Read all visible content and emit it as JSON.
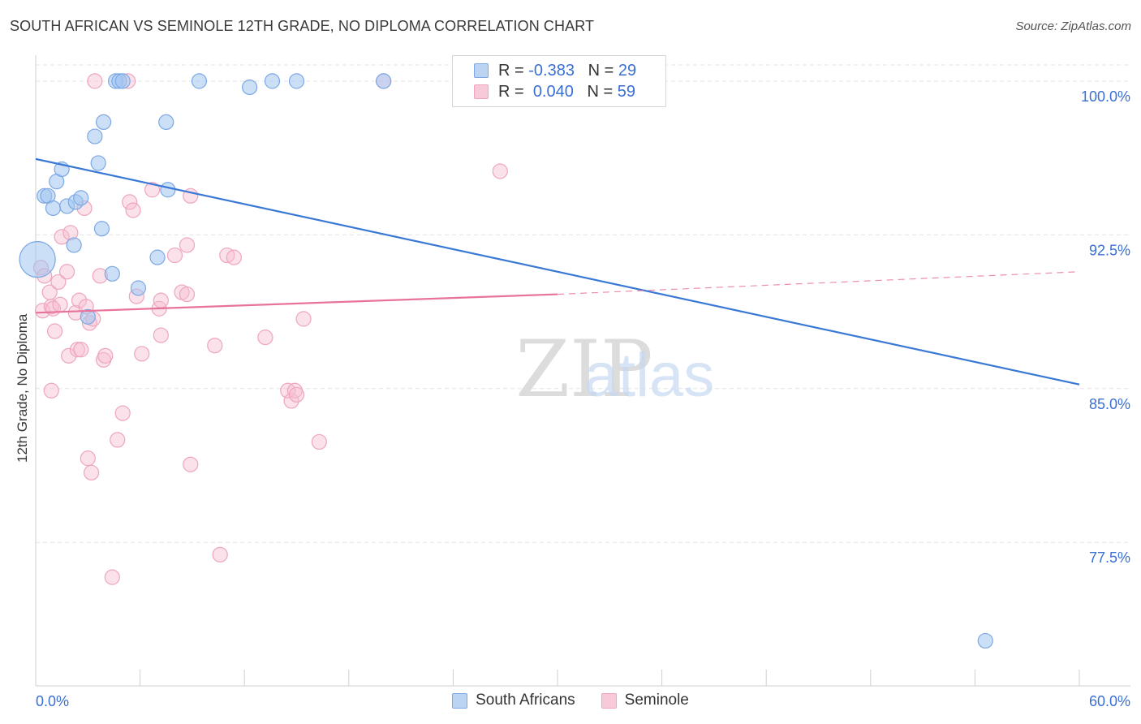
{
  "title": "SOUTH AFRICAN VS SEMINOLE 12TH GRADE, NO DIPLOMA CORRELATION CHART",
  "source": "Source: ZipAtlas.com",
  "watermark": {
    "zip": "ZIP",
    "atlas": "atlas"
  },
  "legend_top": [
    {
      "r_label": "R =",
      "r_value": "-0.383",
      "n_label": "N =",
      "n_value": "29"
    },
    {
      "r_label": "R =",
      "r_value": "0.040",
      "n_label": "N =",
      "n_value": "59"
    }
  ],
  "chart_data": {
    "type": "scatter",
    "title": "SOUTH AFRICAN VS SEMINOLE 12TH GRADE, NO DIPLOMA CORRELATION CHART",
    "xlabel": "",
    "ylabel": "12th Grade, No Diploma",
    "xlim": [
      0,
      60
    ],
    "ylim": [
      70.5,
      101.5
    ],
    "x_tick_labels": [
      "0.0%",
      "60.0%"
    ],
    "y_ticks": [
      100.0,
      92.5,
      85.0,
      77.5
    ],
    "y_tick_labels": [
      "100.0%",
      "92.5%",
      "85.0%",
      "77.5%"
    ],
    "grid": true,
    "legend": "bottom-center",
    "colors": {
      "south_africans": "#8ab4ea",
      "seminole": "#f2a7bf",
      "sa_line": "#3a78d6",
      "sem_line": "#e8739a",
      "tick_text": "#3a6fd4"
    },
    "series": [
      {
        "name": "South Africans",
        "R": -0.383,
        "N": 29,
        "trend": {
          "x0": 0,
          "y0": 96.2,
          "x1": 60,
          "y1": 85.2
        },
        "points": [
          [
            0.1,
            91.3,
            22
          ],
          [
            0.5,
            94.4,
            9
          ],
          [
            0.7,
            94.4,
            9
          ],
          [
            1.0,
            93.8,
            9
          ],
          [
            1.2,
            95.1,
            9
          ],
          [
            1.5,
            95.7,
            9
          ],
          [
            1.8,
            93.9,
            9
          ],
          [
            2.2,
            92.0,
            9
          ],
          [
            2.3,
            94.1,
            9
          ],
          [
            2.6,
            94.3,
            9
          ],
          [
            3.0,
            88.5,
            9
          ],
          [
            3.4,
            97.3,
            9
          ],
          [
            3.6,
            96.0,
            9
          ],
          [
            3.8,
            92.8,
            9
          ],
          [
            3.9,
            98.0,
            9
          ],
          [
            4.4,
            90.6,
            9
          ],
          [
            4.6,
            100.0,
            9
          ],
          [
            4.8,
            100.0,
            9
          ],
          [
            5.0,
            100.0,
            9
          ],
          [
            5.9,
            89.9,
            9
          ],
          [
            7.0,
            91.4,
            9
          ],
          [
            7.5,
            98.0,
            9
          ],
          [
            7.6,
            94.7,
            9
          ],
          [
            9.4,
            100.0,
            9
          ],
          [
            12.3,
            99.7,
            9
          ],
          [
            13.6,
            100.0,
            9
          ],
          [
            15.0,
            100.0,
            9
          ],
          [
            20.0,
            100.0,
            9
          ],
          [
            54.6,
            72.7,
            9
          ]
        ]
      },
      {
        "name": "Seminole",
        "R": 0.04,
        "N": 59,
        "trend": {
          "x0": 0,
          "y0": 88.7,
          "x1": 30,
          "y1": 89.6
        },
        "trend_dashed": {
          "x0": 30,
          "y0": 89.6,
          "x1": 60,
          "y1": 90.7
        },
        "points": [
          [
            0.3,
            90.9,
            9
          ],
          [
            0.4,
            88.8,
            9
          ],
          [
            0.5,
            90.5,
            9
          ],
          [
            0.8,
            89.7,
            9
          ],
          [
            0.9,
            89.0,
            9
          ],
          [
            0.9,
            84.9,
            9
          ],
          [
            1.0,
            88.9,
            9
          ],
          [
            1.1,
            87.8,
            9
          ],
          [
            1.3,
            90.2,
            9
          ],
          [
            1.4,
            89.1,
            9
          ],
          [
            1.5,
            92.4,
            9
          ],
          [
            1.8,
            90.7,
            9
          ],
          [
            1.9,
            86.6,
            9
          ],
          [
            2.0,
            92.6,
            9
          ],
          [
            2.3,
            88.7,
            9
          ],
          [
            2.4,
            86.9,
            9
          ],
          [
            2.5,
            89.3,
            9
          ],
          [
            2.6,
            86.9,
            9
          ],
          [
            2.8,
            93.8,
            9
          ],
          [
            2.9,
            89.0,
            9
          ],
          [
            3.0,
            81.6,
            9
          ],
          [
            3.1,
            88.2,
            9
          ],
          [
            3.2,
            80.9,
            9
          ],
          [
            3.3,
            88.4,
            9
          ],
          [
            3.4,
            100.0,
            9
          ],
          [
            3.7,
            90.5,
            9
          ],
          [
            3.9,
            86.4,
            9
          ],
          [
            4.0,
            86.6,
            9
          ],
          [
            4.4,
            75.8,
            9
          ],
          [
            4.7,
            82.5,
            9
          ],
          [
            5.0,
            83.8,
            9
          ],
          [
            5.3,
            100.0,
            9
          ],
          [
            5.4,
            94.1,
            9
          ],
          [
            5.6,
            93.7,
            9
          ],
          [
            5.8,
            89.5,
            9
          ],
          [
            6.1,
            86.7,
            9
          ],
          [
            6.7,
            94.7,
            9
          ],
          [
            7.1,
            88.9,
            9
          ],
          [
            7.2,
            87.6,
            9
          ],
          [
            7.2,
            89.3,
            9
          ],
          [
            8.0,
            91.5,
            9
          ],
          [
            8.4,
            89.7,
            9
          ],
          [
            8.7,
            89.6,
            9
          ],
          [
            8.7,
            92.0,
            9
          ],
          [
            8.9,
            94.4,
            9
          ],
          [
            8.9,
            81.3,
            9
          ],
          [
            10.3,
            87.1,
            9
          ],
          [
            10.6,
            76.9,
            9
          ],
          [
            11.0,
            91.5,
            9
          ],
          [
            11.4,
            91.4,
            9
          ],
          [
            13.2,
            87.5,
            9
          ],
          [
            14.5,
            84.9,
            9
          ],
          [
            14.7,
            84.4,
            9
          ],
          [
            14.9,
            84.9,
            9
          ],
          [
            15.4,
            88.4,
            9
          ],
          [
            15.0,
            84.7,
            9
          ],
          [
            16.3,
            82.4,
            9
          ],
          [
            20.0,
            100.0,
            9
          ],
          [
            26.7,
            95.6,
            9
          ]
        ]
      }
    ]
  },
  "legend_bottom": [
    "South Africans",
    "Seminole"
  ]
}
